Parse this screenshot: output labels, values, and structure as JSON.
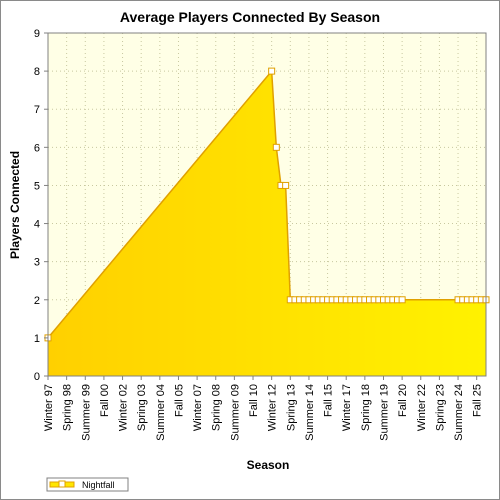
{
  "chart_data": {
    "type": "area",
    "title": "Average Players Connected By Season",
    "xlabel": "Season",
    "ylabel": "Players Connected",
    "ylim": [
      0,
      9
    ],
    "yticks": [
      0,
      1,
      2,
      3,
      4,
      5,
      6,
      7,
      8,
      9
    ],
    "grid": true,
    "legend_position": "bottom-left",
    "colors": {
      "fill": "#ffe600",
      "fill_light": "#ffff66",
      "line": "#e0a000",
      "plot_bg": "#ffffe6",
      "grid": "#c8c8a0"
    },
    "x_tick_labels": [
      "Winter 97",
      "Spring 98",
      "Summer 99",
      "Fall 00",
      "Winter 02",
      "Spring 03",
      "Summer 04",
      "Fall 05",
      "Winter 07",
      "Spring 08",
      "Summer 09",
      "Fall 10",
      "Winter 12",
      "Spring 13",
      "Summer 14",
      "Fall 15",
      "Winter 17",
      "Spring 18",
      "Summer 19",
      "Fall 20",
      "Winter 22",
      "Spring 23",
      "Summer 24",
      "Fall 25"
    ],
    "series": [
      {
        "name": "Nightfall",
        "points": [
          {
            "season": "Winter 97",
            "value": 1
          },
          {
            "season": "Winter 12",
            "value": 8
          },
          {
            "season": "Winter 12+1",
            "value": 6
          },
          {
            "season": "Winter 12+2",
            "value": 5
          },
          {
            "season": "Winter 12+3",
            "value": 5
          },
          {
            "season": "Spring 13",
            "value": 2
          },
          {
            "season": "Spring 13+1",
            "value": 2
          },
          {
            "season": "Spring 13+2",
            "value": 2
          },
          {
            "season": "Spring 13+3",
            "value": 2
          },
          {
            "season": "Summer 14",
            "value": 2
          },
          {
            "season": "Summer 14+1",
            "value": 2
          },
          {
            "season": "Summer 14+2",
            "value": 2
          },
          {
            "season": "Summer 14+3",
            "value": 2
          },
          {
            "season": "Fall 15",
            "value": 2
          },
          {
            "season": "Fall 15+1",
            "value": 2
          },
          {
            "season": "Fall 15+2",
            "value": 2
          },
          {
            "season": "Fall 15+3",
            "value": 2
          },
          {
            "season": "Winter 17",
            "value": 2
          },
          {
            "season": "Winter 17+1",
            "value": 2
          },
          {
            "season": "Winter 17+2",
            "value": 2
          },
          {
            "season": "Winter 17+3",
            "value": 2
          },
          {
            "season": "Spring 18",
            "value": 2
          },
          {
            "season": "Spring 18+1",
            "value": 2
          },
          {
            "season": "Spring 18+2",
            "value": 2
          },
          {
            "season": "Spring 18+3",
            "value": 2
          },
          {
            "season": "Summer 19",
            "value": 2
          },
          {
            "season": "Summer 19+1",
            "value": 2
          },
          {
            "season": "Summer 19+2",
            "value": 2
          },
          {
            "season": "Summer 19+3",
            "value": 2
          },
          {
            "season": "Fall 20",
            "value": 2
          },
          {
            "season": "Summer 24",
            "value": 2
          },
          {
            "season": "Summer 24+1",
            "value": 2
          },
          {
            "season": "Summer 24+2",
            "value": 2
          },
          {
            "season": "Summer 24+3",
            "value": 2
          },
          {
            "season": "Fall 25",
            "value": 2
          },
          {
            "season": "Fall 25+1",
            "value": 2
          },
          {
            "season": "Fall 25+2",
            "value": 2
          }
        ]
      }
    ]
  }
}
